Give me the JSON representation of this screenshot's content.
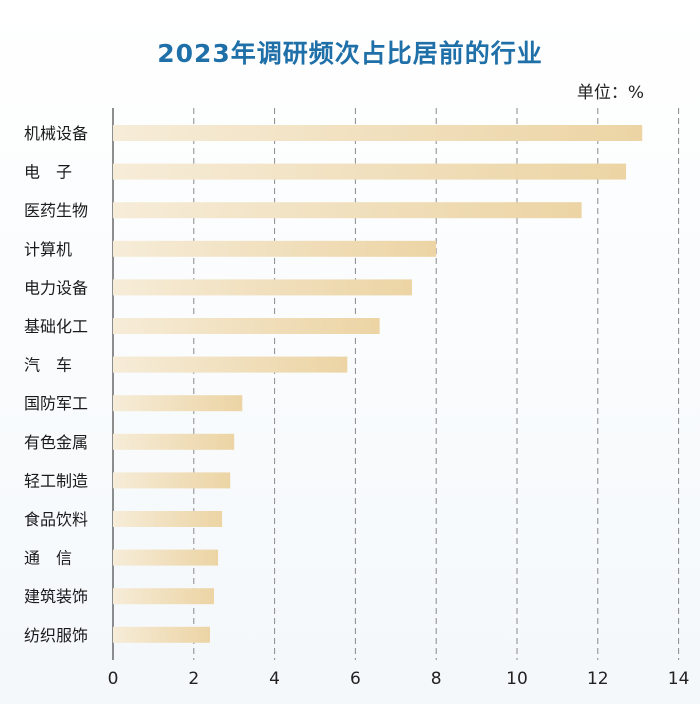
{
  "title": "2023年调研频次占比居前的行业",
  "unit_label": "单位：%",
  "colors": {
    "title": "#1f6fa8",
    "bar_start": "#f6ecd8",
    "bar_end": "#ecd4a4",
    "grid": "#8a8a8a",
    "axis": "#444444"
  },
  "chart_data": {
    "type": "bar",
    "orientation": "horizontal",
    "title": "2023年调研频次占比居前的行业",
    "unit": "%",
    "xlabel": "",
    "ylabel": "",
    "xlim": [
      0,
      14
    ],
    "x_ticks": [
      "0",
      "2",
      "4",
      "6",
      "8",
      "10",
      "12",
      "14"
    ],
    "grid": "vertical dashed",
    "categories": [
      "机械设备",
      "电　子",
      "医药生物",
      "计算机",
      "电力设备",
      "基础化工",
      "汽　车",
      "国防军工",
      "有色金属",
      "轻工制造",
      "食品饮料",
      "通　信",
      "建筑装饰",
      "纺织服饰"
    ],
    "values": [
      13.1,
      12.7,
      11.6,
      8.0,
      7.4,
      6.6,
      5.8,
      3.2,
      3.0,
      2.9,
      2.7,
      2.6,
      2.5,
      2.4
    ]
  }
}
